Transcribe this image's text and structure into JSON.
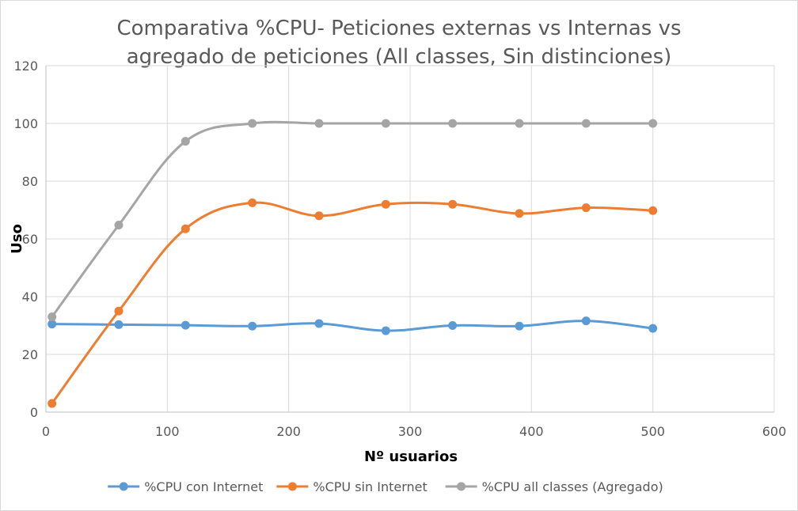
{
  "chart_data": {
    "type": "line",
    "title_lines": [
      "Comparativa %CPU- Peticiones externas vs Internas vs",
      "agregado de peticiones (All classes, Sin distinciones)"
    ],
    "xlabel": "Nº usuarios",
    "ylabel": "Uso",
    "xlim": [
      0,
      600
    ],
    "ylim": [
      0,
      120
    ],
    "x_ticks": [
      0,
      100,
      200,
      300,
      400,
      500,
      600
    ],
    "y_ticks": [
      0,
      20,
      40,
      60,
      80,
      100,
      120
    ],
    "grid": true,
    "smooth": true,
    "legend_position": "bottom",
    "series": [
      {
        "name": "%CPU con Internet",
        "color": "#5b9bd5",
        "x": [
          5,
          60,
          115,
          170,
          225,
          280,
          335,
          390,
          445,
          500
        ],
        "y": [
          30.5,
          30.3,
          30.1,
          29.8,
          30.7,
          28.2,
          30.0,
          29.8,
          31.6,
          29.0
        ]
      },
      {
        "name": "%CPU sin Internet",
        "color": "#ed7d31",
        "x": [
          5,
          60,
          115,
          170,
          225,
          280,
          335,
          390,
          445,
          500
        ],
        "y": [
          3.0,
          35.0,
          63.5,
          72.5,
          68.0,
          72.0,
          72.0,
          68.8,
          70.8,
          69.8
        ]
      },
      {
        "name": "%CPU all classes (Agregado)",
        "color": "#a5a5a5",
        "x": [
          5,
          60,
          115,
          170,
          225,
          280,
          335,
          390,
          445,
          500
        ],
        "y": [
          33.0,
          64.8,
          93.8,
          100,
          100,
          100,
          100,
          100,
          100,
          100
        ]
      }
    ]
  }
}
